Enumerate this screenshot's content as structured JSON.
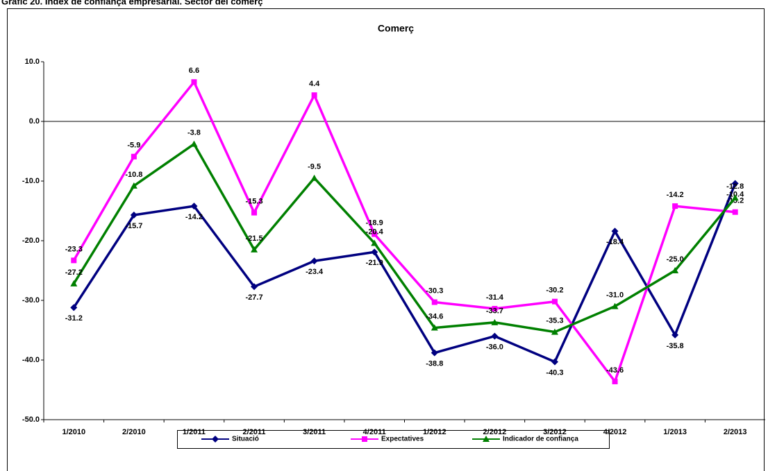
{
  "heading": "Gràfic 20. Índex de confiança empresarial. Sector del comerç",
  "chart_data": {
    "type": "line",
    "title": "Comerç",
    "categories": [
      "1/2010",
      "2/2010",
      "1/2011",
      "2/2011",
      "3/2011",
      "4/2011",
      "1/2012",
      "2/2012",
      "3/2012",
      "4/2012",
      "1/2013",
      "2/2013"
    ],
    "series": [
      {
        "name": "Situació",
        "color": "#000080",
        "marker": "diamond",
        "values": [
          -31.2,
          -15.7,
          -14.2,
          -27.7,
          -23.4,
          -21.9,
          -38.8,
          -36.0,
          -40.3,
          -18.4,
          -35.8,
          -10.4
        ],
        "value_labels": [
          "-31.2",
          "-15.7",
          "-14.2",
          "-27.7",
          "-23.4",
          "-21.9",
          "-38.8",
          "-36.0",
          "-40.3",
          "-18.4",
          "-35.8",
          "-10.4"
        ]
      },
      {
        "name": "Expectatives",
        "color": "#ff00ff",
        "marker": "square",
        "values": [
          -23.3,
          -5.9,
          6.6,
          -15.3,
          4.4,
          -18.9,
          -30.3,
          -31.4,
          -30.2,
          -43.6,
          -14.2,
          -15.2
        ],
        "value_labels": [
          "-23.3",
          "-5.9",
          "6.6",
          "-15.3",
          "4.4",
          "-18.9",
          "-30.3",
          "-31.4",
          "-30.2",
          "-43.6",
          "-14.2",
          "-15.2"
        ]
      },
      {
        "name": "Indicador de confiança",
        "color": "#008000",
        "marker": "triangle",
        "values": [
          -27.2,
          -10.8,
          -3.8,
          -21.5,
          -9.5,
          -20.4,
          -34.6,
          -33.7,
          -35.3,
          -31.0,
          -25.0,
          -12.8
        ],
        "value_labels": [
          "-27.2",
          "-10.8",
          "-3.8",
          "-21.5",
          "-9.5",
          "-20.4",
          "-34.6",
          "-33.7",
          "-35.3",
          "-31.0",
          "-25.0",
          "-12.8"
        ]
      }
    ],
    "ylim": [
      -50,
      10
    ],
    "yticks": [
      {
        "value": 10,
        "label": "10.0"
      },
      {
        "value": 0,
        "label": "0.0"
      },
      {
        "value": -10,
        "label": "-10.0"
      },
      {
        "value": -20,
        "label": "-20.0"
      },
      {
        "value": -30,
        "label": "-30.0"
      },
      {
        "value": -40,
        "label": "-40.0"
      },
      {
        "value": -50,
        "label": "-50.0"
      }
    ],
    "grid": false,
    "legend": "bottom"
  }
}
